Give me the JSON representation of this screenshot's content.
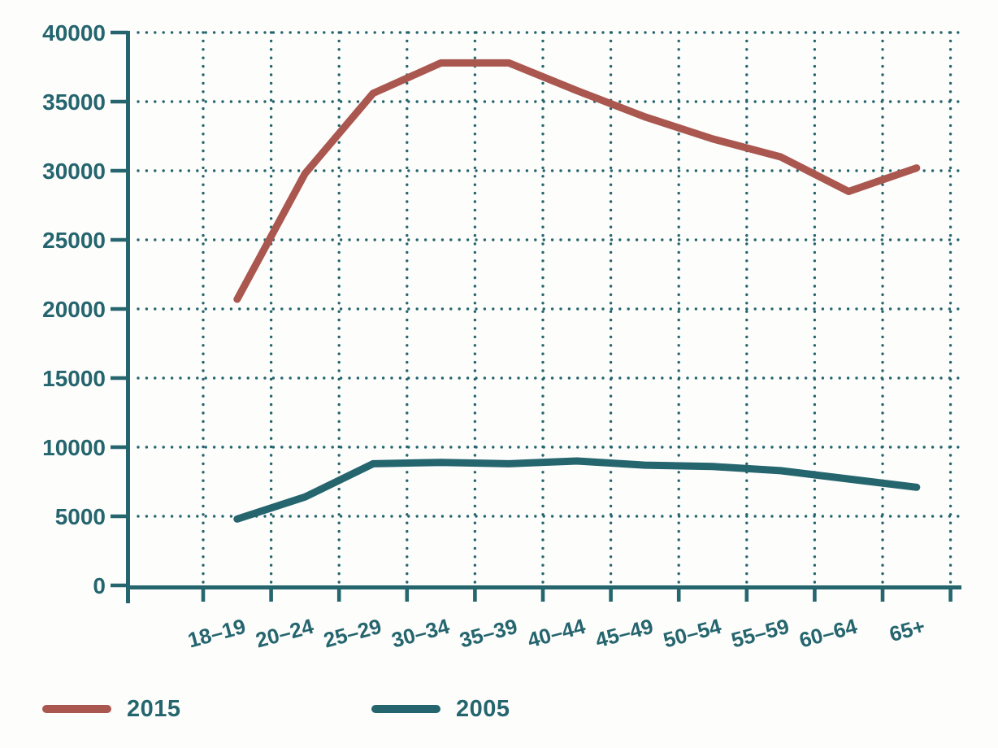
{
  "chart_data": {
    "type": "line",
    "categories": [
      "18–19",
      "20–24",
      "25–29",
      "30–34",
      "35–39",
      "40–44",
      "45–49",
      "50–54",
      "55–59",
      "60–64",
      "65+"
    ],
    "series": [
      {
        "name": "2015",
        "color": "#aa574f",
        "values": [
          20700,
          29800,
          35600,
          37800,
          37800,
          35800,
          33900,
          32300,
          31000,
          28500,
          30200
        ]
      },
      {
        "name": "2005",
        "color": "#25656e",
        "values": [
          4800,
          6400,
          8800,
          8900,
          8800,
          9000,
          8700,
          8600,
          8300,
          7700,
          7100
        ]
      }
    ],
    "title": "",
    "xlabel": "",
    "ylabel": "",
    "ylim": [
      0,
      40000
    ],
    "yticks": [
      0,
      5000,
      10000,
      15000,
      20000,
      25000,
      30000,
      35000,
      40000
    ],
    "grid": "dotted",
    "legend_position": "bottom-left"
  },
  "colors": {
    "axis": "#25656e",
    "grid_dots": "#25656e",
    "tick_text": "#25656e",
    "background": "#fdfdfc"
  }
}
